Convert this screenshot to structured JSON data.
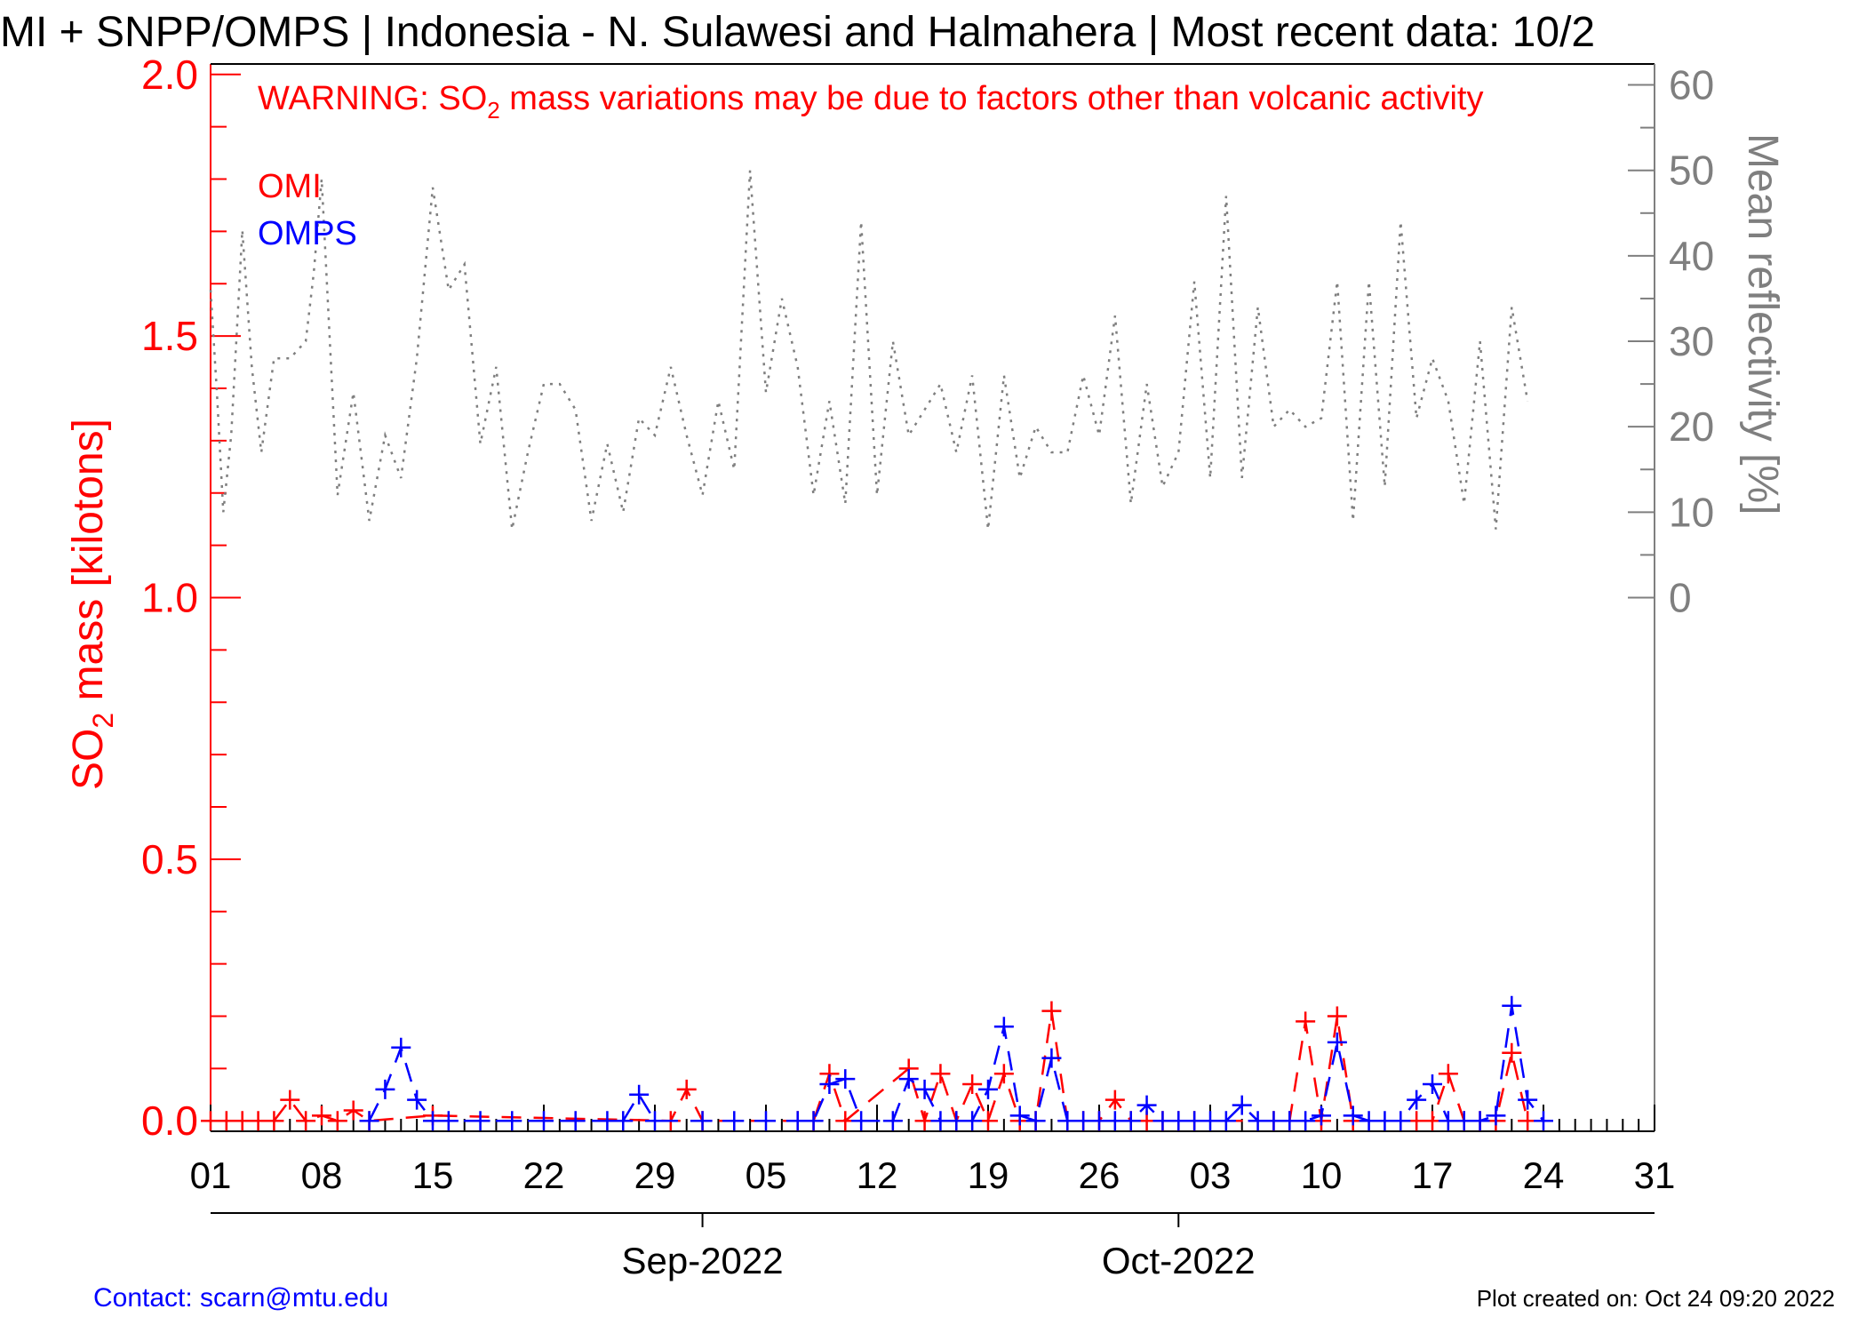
{
  "title": "MI + SNPP/OMPS | Indonesia - N. Sulawesi and Halmahera | Most recent data: 10/2",
  "warning": {
    "prefix": "WARNING: SO",
    "sub": "2",
    "suffix": " mass variations may be due to factors other than volcanic activity"
  },
  "legend": [
    {
      "label": "OMI",
      "color": "#ff0000"
    },
    {
      "label": "OMPS",
      "color": "#0000ff"
    }
  ],
  "footer": {
    "contact": "Contact: scarn@mtu.edu",
    "created": "Plot created on: Oct 24 09:20 2022"
  },
  "colors": {
    "omi": "#ff0000",
    "omps": "#0000ff",
    "reflectivity": "#7f7f7f",
    "axis": "#000000"
  },
  "chart_data": {
    "type": "line",
    "y_left": {
      "label_prefix": "SO",
      "label_sub": "2",
      "label_suffix": " mass [kilotons]",
      "ylim": [
        -0.02,
        2.02
      ],
      "ticks": [
        "0.0",
        "0.5",
        "1.0",
        "1.5",
        "2.0"
      ],
      "tick_values": [
        0.0,
        0.5,
        1.0,
        1.5,
        2.0
      ]
    },
    "y_right": {
      "label": "Mean reflectivity [%]",
      "ticks": [
        "0",
        "10",
        "20",
        "30",
        "40",
        "50",
        "60"
      ],
      "tick_values": [
        0,
        10,
        20,
        30,
        40,
        50,
        60
      ],
      "zero_at_left_value": 1.0,
      "top_at_left_value": 1.98
    },
    "x_axis": {
      "start_date": "2022-08-01",
      "end_date": "2022-10-31",
      "tick_labels": [
        "01",
        "08",
        "15",
        "22",
        "29",
        "05",
        "12",
        "19",
        "26",
        "03",
        "10",
        "17",
        "24",
        "31"
      ],
      "tick_dates": [
        "2022-08-01",
        "2022-08-08",
        "2022-08-15",
        "2022-08-22",
        "2022-08-29",
        "2022-09-05",
        "2022-09-12",
        "2022-09-19",
        "2022-09-26",
        "2022-10-03",
        "2022-10-10",
        "2022-10-17",
        "2022-10-24",
        "2022-10-31"
      ],
      "month_labels": [
        "Sep-2022",
        "Oct-2022"
      ],
      "month_dates": [
        "2022-09-01",
        "2022-10-01"
      ]
    },
    "series": [
      {
        "name": "OMI",
        "color": "#ff0000",
        "style": "dashed-plus",
        "points": [
          [
            "2022-08-01",
            0.0
          ],
          [
            "2022-08-02",
            0.0
          ],
          [
            "2022-08-03",
            0.0
          ],
          [
            "2022-08-04",
            0.0
          ],
          [
            "2022-08-05",
            0.0
          ],
          [
            "2022-08-06",
            0.04
          ],
          [
            "2022-08-07",
            0.0
          ],
          [
            "2022-08-08",
            0.01
          ],
          [
            "2022-08-09",
            0.0
          ],
          [
            "2022-08-10",
            0.02
          ],
          [
            "2022-08-11",
            0.0
          ],
          [
            "2022-08-15",
            0.01
          ],
          [
            "2022-08-30",
            0.0
          ],
          [
            "2022-08-31",
            0.06
          ],
          [
            "2022-09-01",
            0.0
          ],
          [
            "2022-09-07",
            0.0
          ],
          [
            "2022-09-08",
            0.0
          ],
          [
            "2022-09-09",
            0.09
          ],
          [
            "2022-09-10",
            0.0
          ],
          [
            "2022-09-14",
            0.1
          ],
          [
            "2022-09-15",
            0.0
          ],
          [
            "2022-09-16",
            0.09
          ],
          [
            "2022-09-17",
            0.0
          ],
          [
            "2022-09-18",
            0.07
          ],
          [
            "2022-09-19",
            0.0
          ],
          [
            "2022-09-20",
            0.09
          ],
          [
            "2022-09-21",
            0.0
          ],
          [
            "2022-09-22",
            0.0
          ],
          [
            "2022-09-23",
            0.21
          ],
          [
            "2022-09-24",
            0.0
          ],
          [
            "2022-09-25",
            0.0
          ],
          [
            "2022-09-26",
            0.0
          ],
          [
            "2022-09-27",
            0.04
          ],
          [
            "2022-09-28",
            0.0
          ],
          [
            "2022-09-29",
            0.0
          ],
          [
            "2022-09-30",
            0.0
          ],
          [
            "2022-10-01",
            0.0
          ],
          [
            "2022-10-02",
            0.0
          ],
          [
            "2022-10-07",
            0.0
          ],
          [
            "2022-10-08",
            0.0
          ],
          [
            "2022-10-09",
            0.19
          ],
          [
            "2022-10-10",
            0.0
          ],
          [
            "2022-10-11",
            0.2
          ],
          [
            "2022-10-12",
            0.0
          ],
          [
            "2022-10-16",
            0.0
          ],
          [
            "2022-10-17",
            0.0
          ],
          [
            "2022-10-18",
            0.09
          ],
          [
            "2022-10-19",
            0.0
          ],
          [
            "2022-10-20",
            0.0
          ],
          [
            "2022-10-21",
            0.0
          ],
          [
            "2022-10-22",
            0.13
          ],
          [
            "2022-10-23",
            0.0
          ]
        ]
      },
      {
        "name": "OMPS",
        "color": "#0000ff",
        "style": "dashed-plus",
        "points": [
          [
            "2022-08-11",
            0.0
          ],
          [
            "2022-08-12",
            0.06
          ],
          [
            "2022-08-13",
            0.14
          ],
          [
            "2022-08-14",
            0.04
          ],
          [
            "2022-08-15",
            0.0
          ],
          [
            "2022-08-16",
            0.0
          ],
          [
            "2022-08-18",
            0.0
          ],
          [
            "2022-08-20",
            0.0
          ],
          [
            "2022-08-22",
            0.0
          ],
          [
            "2022-08-24",
            0.0
          ],
          [
            "2022-08-26",
            0.0
          ],
          [
            "2022-08-27",
            0.0
          ],
          [
            "2022-08-28",
            0.05
          ],
          [
            "2022-08-29",
            0.0
          ],
          [
            "2022-09-01",
            0.0
          ],
          [
            "2022-09-03",
            0.0
          ],
          [
            "2022-09-05",
            0.0
          ],
          [
            "2022-09-07",
            0.0
          ],
          [
            "2022-09-08",
            0.0
          ],
          [
            "2022-09-09",
            0.07
          ],
          [
            "2022-09-10",
            0.08
          ],
          [
            "2022-09-11",
            0.0
          ],
          [
            "2022-09-13",
            0.0
          ],
          [
            "2022-09-14",
            0.08
          ],
          [
            "2022-09-15",
            0.06
          ],
          [
            "2022-09-16",
            0.0
          ],
          [
            "2022-09-17",
            0.0
          ],
          [
            "2022-09-18",
            0.0
          ],
          [
            "2022-09-19",
            0.06
          ],
          [
            "2022-09-20",
            0.18
          ],
          [
            "2022-09-21",
            0.01
          ],
          [
            "2022-09-22",
            0.0
          ],
          [
            "2022-09-23",
            0.12
          ],
          [
            "2022-09-24",
            0.0
          ],
          [
            "2022-09-25",
            0.0
          ],
          [
            "2022-09-26",
            0.0
          ],
          [
            "2022-09-27",
            0.0
          ],
          [
            "2022-09-28",
            0.0
          ],
          [
            "2022-09-29",
            0.03
          ],
          [
            "2022-09-30",
            0.0
          ],
          [
            "2022-10-01",
            0.0
          ],
          [
            "2022-10-02",
            0.0
          ],
          [
            "2022-10-03",
            0.0
          ],
          [
            "2022-10-04",
            0.0
          ],
          [
            "2022-10-05",
            0.03
          ],
          [
            "2022-10-06",
            0.0
          ],
          [
            "2022-10-07",
            0.0
          ],
          [
            "2022-10-08",
            0.0
          ],
          [
            "2022-10-09",
            0.0
          ],
          [
            "2022-10-10",
            0.01
          ],
          [
            "2022-10-11",
            0.15
          ],
          [
            "2022-10-12",
            0.01
          ],
          [
            "2022-10-13",
            0.0
          ],
          [
            "2022-10-14",
            0.0
          ],
          [
            "2022-10-15",
            0.0
          ],
          [
            "2022-10-16",
            0.04
          ],
          [
            "2022-10-17",
            0.07
          ],
          [
            "2022-10-18",
            0.0
          ],
          [
            "2022-10-19",
            0.0
          ],
          [
            "2022-10-20",
            0.0
          ],
          [
            "2022-10-21",
            0.01
          ],
          [
            "2022-10-22",
            0.22
          ],
          [
            "2022-10-23",
            0.04
          ],
          [
            "2022-10-24",
            0.0
          ]
        ]
      },
      {
        "name": "Mean reflectivity",
        "color": "#7f7f7f",
        "style": "dotted",
        "axis": "right",
        "points": [
          [
            "2022-08-01.0",
            36
          ],
          [
            "2022-08-01.4",
            24
          ],
          [
            "2022-08-01.8",
            10
          ],
          [
            "2022-08-02.3",
            19
          ],
          [
            "2022-08-03.0",
            43
          ],
          [
            "2022-08-03.6",
            27
          ],
          [
            "2022-08-04.2",
            17
          ],
          [
            "2022-08-05.0",
            28
          ],
          [
            "2022-08-06.0",
            28
          ],
          [
            "2022-08-07.0",
            30
          ],
          [
            "2022-08-07.5",
            38
          ],
          [
            "2022-08-08.0",
            49
          ],
          [
            "2022-08-09.0",
            12
          ],
          [
            "2022-08-10.0",
            24
          ],
          [
            "2022-08-11.0",
            9
          ],
          [
            "2022-08-12.0",
            19
          ],
          [
            "2022-08-13.0",
            14
          ],
          [
            "2022-08-14.0",
            28
          ],
          [
            "2022-08-15.0",
            48
          ],
          [
            "2022-08-16.0",
            36
          ],
          [
            "2022-08-17.0",
            39
          ],
          [
            "2022-08-18.0",
            18
          ],
          [
            "2022-08-19.0",
            27
          ],
          [
            "2022-08-20.0",
            8
          ],
          [
            "2022-08-21.0",
            17
          ],
          [
            "2022-08-22.0",
            25
          ],
          [
            "2022-08-23.0",
            25
          ],
          [
            "2022-08-24.0",
            22
          ],
          [
            "2022-08-25.0",
            9
          ],
          [
            "2022-08-26.0",
            18
          ],
          [
            "2022-08-27.0",
            10
          ],
          [
            "2022-08-28.0",
            21
          ],
          [
            "2022-08-29.0",
            19
          ],
          [
            "2022-08-30.0",
            27
          ],
          [
            "2022-08-31.0",
            19
          ],
          [
            "2022-09-01.0",
            12
          ],
          [
            "2022-09-02.0",
            23
          ],
          [
            "2022-09-03.0",
            15
          ],
          [
            "2022-09-04.0",
            50
          ],
          [
            "2022-09-05.0",
            24
          ],
          [
            "2022-09-06.0",
            35
          ],
          [
            "2022-09-07.0",
            27
          ],
          [
            "2022-09-08.0",
            12
          ],
          [
            "2022-09-09.0",
            23
          ],
          [
            "2022-09-10.0",
            11
          ],
          [
            "2022-09-11.0",
            44
          ],
          [
            "2022-09-12.0",
            12
          ],
          [
            "2022-09-13.0",
            30
          ],
          [
            "2022-09-14.0",
            19
          ],
          [
            "2022-09-15.0",
            22
          ],
          [
            "2022-09-16.0",
            25
          ],
          [
            "2022-09-17.0",
            17
          ],
          [
            "2022-09-18.0",
            26
          ],
          [
            "2022-09-19.0",
            8
          ],
          [
            "2022-09-20.0",
            26
          ],
          [
            "2022-09-21.0",
            14
          ],
          [
            "2022-09-22.0",
            20
          ],
          [
            "2022-09-23.0",
            17
          ],
          [
            "2022-09-24.0",
            17
          ],
          [
            "2022-09-25.0",
            26
          ],
          [
            "2022-09-26.0",
            19
          ],
          [
            "2022-09-27.0",
            33
          ],
          [
            "2022-09-28.0",
            11
          ],
          [
            "2022-09-29.0",
            25
          ],
          [
            "2022-09-30.0",
            13
          ],
          [
            "2022-10-01.0",
            17
          ],
          [
            "2022-10-02.0",
            37
          ],
          [
            "2022-10-03.0",
            14
          ],
          [
            "2022-10-04.0",
            47
          ],
          [
            "2022-10-05.0",
            14
          ],
          [
            "2022-10-06.0",
            34
          ],
          [
            "2022-10-07.0",
            20
          ],
          [
            "2022-10-08.0",
            22
          ],
          [
            "2022-10-09.0",
            20
          ],
          [
            "2022-10-10.0",
            21
          ],
          [
            "2022-10-11.0",
            37
          ],
          [
            "2022-10-12.0",
            9
          ],
          [
            "2022-10-13.0",
            37
          ],
          [
            "2022-10-14.0",
            13
          ],
          [
            "2022-10-15.0",
            44
          ],
          [
            "2022-10-16.0",
            21
          ],
          [
            "2022-10-17.0",
            28
          ],
          [
            "2022-10-18.0",
            23
          ],
          [
            "2022-10-19.0",
            11
          ],
          [
            "2022-10-20.0",
            30
          ],
          [
            "2022-10-21.0",
            8
          ],
          [
            "2022-10-22.0",
            34
          ],
          [
            "2022-10-23.0",
            23
          ]
        ]
      }
    ]
  }
}
